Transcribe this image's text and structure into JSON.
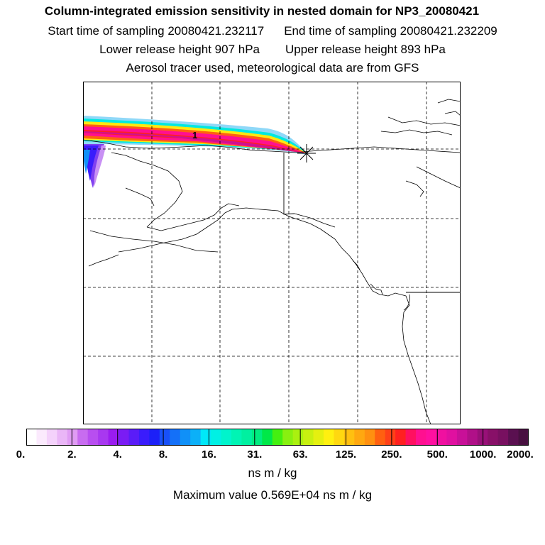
{
  "header": {
    "title": "Column-integrated emission sensitivity in nested domain for NP3_20080421",
    "start_time": "Start time of sampling 20080421.232117",
    "end_time": "End time of sampling 20080421.232209",
    "lower_release": "Lower release height  907 hPa",
    "upper_release": "Upper release height  893 hPa",
    "tracer_info": "Aerosol tracer used, meteorological data are from GFS"
  },
  "map": {
    "plume_label": "1",
    "release_marker": "release-point-star",
    "gridlines": "dashed"
  },
  "colorbar": {
    "tick_labels": [
      "0.",
      "2.",
      "4.",
      "8.",
      "16.",
      "31.",
      "63.",
      "125.",
      "250.",
      "500.",
      "1000.",
      "2000."
    ],
    "colors": [
      "#ffffff",
      "#fbeafd",
      "#f4d2fb",
      "#eab6f7",
      "#e09cf4",
      "#c86cf0",
      "#b84ef0",
      "#a838f0",
      "#9a1cf0",
      "#7a1cf4",
      "#5a1cf8",
      "#3a1cfc",
      "#1c20f8",
      "#1850f8",
      "#1470f8",
      "#1090f8",
      "#0cb0f8",
      "#00e8f8",
      "#00f0e4",
      "#00f4cc",
      "#00f4b4",
      "#00f0a0",
      "#00ec80",
      "#00e848",
      "#44f010",
      "#88f010",
      "#aaf010",
      "#c8f010",
      "#e4f010",
      "#fff010",
      "#ffd810",
      "#ffc010",
      "#ffa810",
      "#ff9010",
      "#ff6010",
      "#ff4018",
      "#ff2020",
      "#ff1060",
      "#ff1090",
      "#ff10a0",
      "#f010a0",
      "#e010a0",
      "#c81098",
      "#b01088",
      "#981078",
      "#881068",
      "#781060",
      "#5a1050",
      "#481040"
    ],
    "units": "ns m / kg"
  },
  "footer": {
    "max_value": "Maximum value  0.569E+04 ns m / kg"
  }
}
